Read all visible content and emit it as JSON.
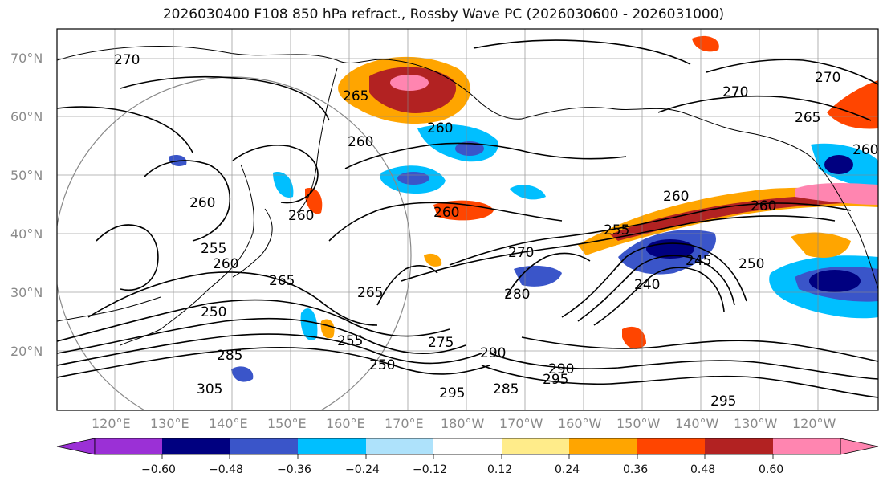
{
  "title": "2026030400 F108 850 hPa refract., Rossby Wave PC (2026030600 - 2026031000)",
  "map": {
    "lat_labels": [
      "70°N",
      "60°N",
      "50°N",
      "40°N",
      "30°N",
      "20°N"
    ],
    "lon_labels": [
      "120°E",
      "130°E",
      "140°E",
      "150°E",
      "160°E",
      "170°E",
      "180°W",
      "170°W",
      "160°W",
      "150°W",
      "140°W",
      "130°W",
      "120°W"
    ],
    "contour_labels": [
      "270",
      "265",
      "260",
      "260",
      "260",
      "255",
      "260",
      "265",
      "250",
      "305",
      "285",
      "260",
      "255",
      "250",
      "295",
      "275",
      "290",
      "295",
      "285",
      "290",
      "270",
      "260",
      "280",
      "265",
      "255",
      "240",
      "245",
      "250",
      "260",
      "270",
      "265",
      "260",
      "295",
      "270",
      "260"
    ]
  },
  "colorbar": {
    "tick_labels": [
      "−0.60",
      "−0.48",
      "−0.36",
      "−0.24",
      "−0.12",
      "0.12",
      "0.24",
      "0.36",
      "0.48",
      "0.60"
    ],
    "colors": [
      "#9b30d6",
      "#000080",
      "#3a55c9",
      "#00bfff",
      "#aee2fb",
      "#ffffff",
      "#ffec8a",
      "#ffa500",
      "#ff4500",
      "#b22222",
      "#ff85b0"
    ]
  }
}
